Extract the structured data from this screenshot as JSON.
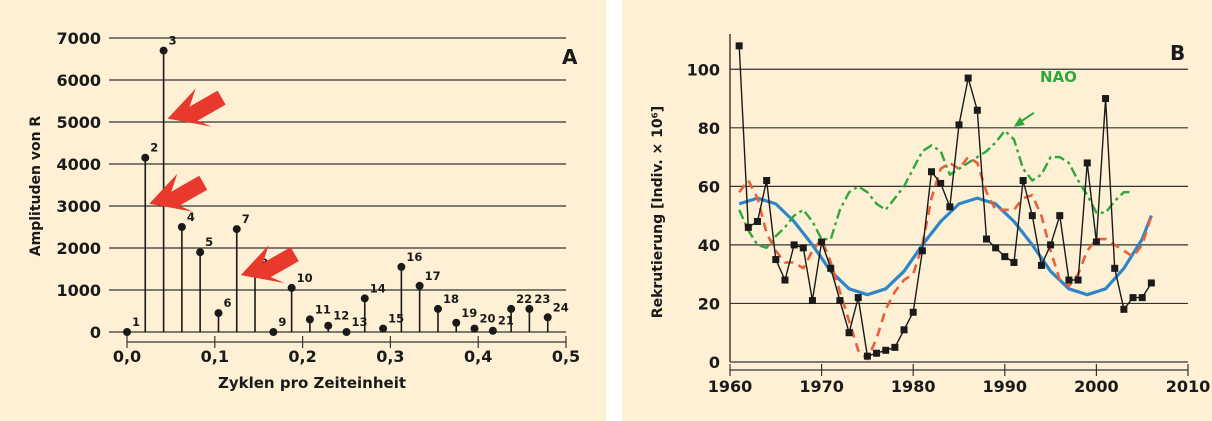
{
  "chart_data": [
    {
      "panel_label": "A",
      "type": "stem",
      "xlabel": "Zyklen pro Zeiteinheit",
      "ylabel": "Amplituden von R",
      "xlim": [
        0,
        0.5
      ],
      "ylim": [
        0,
        7000
      ],
      "x_ticks": [
        0.0,
        0.1,
        0.2,
        0.3,
        0.4,
        0.5
      ],
      "x_tick_labels": [
        "0,0",
        "0,1",
        "0,2",
        "0,3",
        "0,4",
        "0,5"
      ],
      "y_ticks": [
        0,
        1000,
        2000,
        3000,
        4000,
        5000,
        6000,
        7000
      ],
      "y_tick_labels": [
        "0",
        "1000",
        "2000",
        "3000",
        "4000",
        "5000",
        "6000",
        "7000"
      ],
      "grid": "horizontal",
      "points": [
        {
          "label": "1",
          "x": 0.0,
          "y": 0
        },
        {
          "label": "2",
          "x": 0.0208,
          "y": 4150
        },
        {
          "label": "3",
          "x": 0.0417,
          "y": 6700
        },
        {
          "label": "4",
          "x": 0.0625,
          "y": 2500
        },
        {
          "label": "5",
          "x": 0.0833,
          "y": 1900
        },
        {
          "label": "6",
          "x": 0.1042,
          "y": 450
        },
        {
          "label": "7",
          "x": 0.125,
          "y": 2450
        },
        {
          "label": "8",
          "x": 0.1458,
          "y": 1400
        },
        {
          "label": "9",
          "x": 0.1667,
          "y": 0
        },
        {
          "label": "10",
          "x": 0.1875,
          "y": 1050
        },
        {
          "label": "11",
          "x": 0.2083,
          "y": 300
        },
        {
          "label": "12",
          "x": 0.2292,
          "y": 150
        },
        {
          "label": "13",
          "x": 0.25,
          "y": 0
        },
        {
          "label": "14",
          "x": 0.2708,
          "y": 800
        },
        {
          "label": "15",
          "x": 0.2917,
          "y": 80
        },
        {
          "label": "16",
          "x": 0.3125,
          "y": 1550
        },
        {
          "label": "17",
          "x": 0.3333,
          "y": 1100
        },
        {
          "label": "18",
          "x": 0.3542,
          "y": 550
        },
        {
          "label": "19",
          "x": 0.375,
          "y": 220
        },
        {
          "label": "20",
          "x": 0.3958,
          "y": 80
        },
        {
          "label": "21",
          "x": 0.4167,
          "y": 30
        },
        {
          "label": "22",
          "x": 0.4375,
          "y": 550
        },
        {
          "label": "23",
          "x": 0.4583,
          "y": 550
        },
        {
          "label": "24",
          "x": 0.4792,
          "y": 350
        }
      ],
      "highlighted_points": [
        "2",
        "3",
        "7"
      ],
      "colors": {
        "stem": "#1a1a1a",
        "arrow": "#e8392c",
        "background": "#fdf0d5"
      }
    },
    {
      "panel_label": "B",
      "type": "line",
      "xlabel": "",
      "ylabel": "Rekrutierung [Indiv. × 10⁶]",
      "xlim": [
        1960,
        2010
      ],
      "ylim": [
        0,
        110
      ],
      "x_ticks": [
        1960,
        1970,
        1980,
        1990,
        2000,
        2010
      ],
      "y_ticks": [
        0,
        20,
        40,
        60,
        80,
        100
      ],
      "grid": "horizontal",
      "annotation": "NAO",
      "series": [
        {
          "style": "solid-markers",
          "color": "#1a1a1a",
          "x": [
            1961,
            1962,
            1963,
            1964,
            1965,
            1966,
            1967,
            1968,
            1969,
            1970,
            1971,
            1972,
            1973,
            1974,
            1975,
            1976,
            1977,
            1978,
            1979,
            1980,
            1981,
            1982,
            1983,
            1984,
            1985,
            1986,
            1987,
            1988,
            1989,
            1990,
            1991,
            1992,
            1993,
            1994,
            1995,
            1996,
            1997,
            1998,
            1999,
            2000,
            2001,
            2002,
            2003,
            2004,
            2005,
            2006
          ],
          "y": [
            108,
            46,
            48,
            62,
            35,
            28,
            40,
            39,
            21,
            41,
            32,
            21,
            10,
            22,
            2,
            3,
            4,
            5,
            11,
            17,
            38,
            65,
            61,
            53,
            81,
            97,
            86,
            42,
            39,
            36,
            34,
            62,
            50,
            33,
            40,
            50,
            28,
            28,
            68,
            41,
            90,
            32,
            18,
            22,
            22,
            27
          ]
        },
        {
          "name": "NAO",
          "style": "dash-dot",
          "color": "#2ea83a",
          "x": [
            1961,
            1962,
            1963,
            1964,
            1965,
            1966,
            1967,
            1968,
            1969,
            1970,
            1971,
            1972,
            1973,
            1974,
            1975,
            1976,
            1977,
            1978,
            1979,
            1980,
            1981,
            1982,
            1983,
            1984,
            1985,
            1986,
            1987,
            1988,
            1989,
            1990,
            1991,
            1992,
            1993,
            1994,
            1995,
            1996,
            1997,
            1998,
            1999,
            2000,
            2001,
            2002,
            2003,
            2004
          ],
          "y": [
            52,
            45,
            40,
            39,
            43,
            46,
            50,
            52,
            48,
            42,
            42,
            52,
            58,
            60,
            58,
            54,
            52,
            56,
            60,
            66,
            72,
            74,
            72,
            64,
            66,
            68,
            70,
            72,
            75,
            79,
            76,
            66,
            62,
            64,
            70,
            70,
            68,
            62,
            57,
            51,
            51,
            55,
            58,
            58
          ]
        },
        {
          "style": "dashed",
          "color": "#e8603c",
          "x": [
            1961,
            1962,
            1963,
            1964,
            1965,
            1966,
            1967,
            1968,
            1969,
            1970,
            1971,
            1972,
            1973,
            1974,
            1975,
            1976,
            1977,
            1978,
            1979,
            1980,
            1981,
            1982,
            1983,
            1984,
            1985,
            1986,
            1987,
            1988,
            1989,
            1990,
            1991,
            1992,
            1993,
            1994,
            1995,
            1996,
            1997,
            1998,
            1999,
            2000,
            2001,
            2002,
            2003,
            2004,
            2005,
            2006
          ],
          "y": [
            58,
            62,
            56,
            44,
            38,
            34,
            34,
            32,
            38,
            42,
            34,
            24,
            14,
            4,
            1,
            8,
            18,
            24,
            28,
            30,
            40,
            56,
            66,
            68,
            66,
            70,
            68,
            58,
            52,
            52,
            52,
            56,
            57,
            50,
            38,
            28,
            26,
            30,
            38,
            42,
            42,
            40,
            38,
            36,
            40,
            50
          ]
        },
        {
          "style": "smooth",
          "color": "#2e86c8",
          "x": [
            1961,
            1963,
            1965,
            1967,
            1969,
            1971,
            1973,
            1975,
            1977,
            1979,
            1981,
            1983,
            1985,
            1987,
            1989,
            1991,
            1993,
            1995,
            1997,
            1999,
            2001,
            2003,
            2005,
            2006
          ],
          "y": [
            54,
            56,
            54,
            48,
            40,
            31,
            25,
            23,
            25,
            31,
            40,
            48,
            54,
            56,
            54,
            48,
            40,
            31,
            25,
            23,
            25,
            32,
            42,
            50
          ]
        }
      ],
      "colors": {
        "background": "#fdf0d5"
      }
    }
  ]
}
